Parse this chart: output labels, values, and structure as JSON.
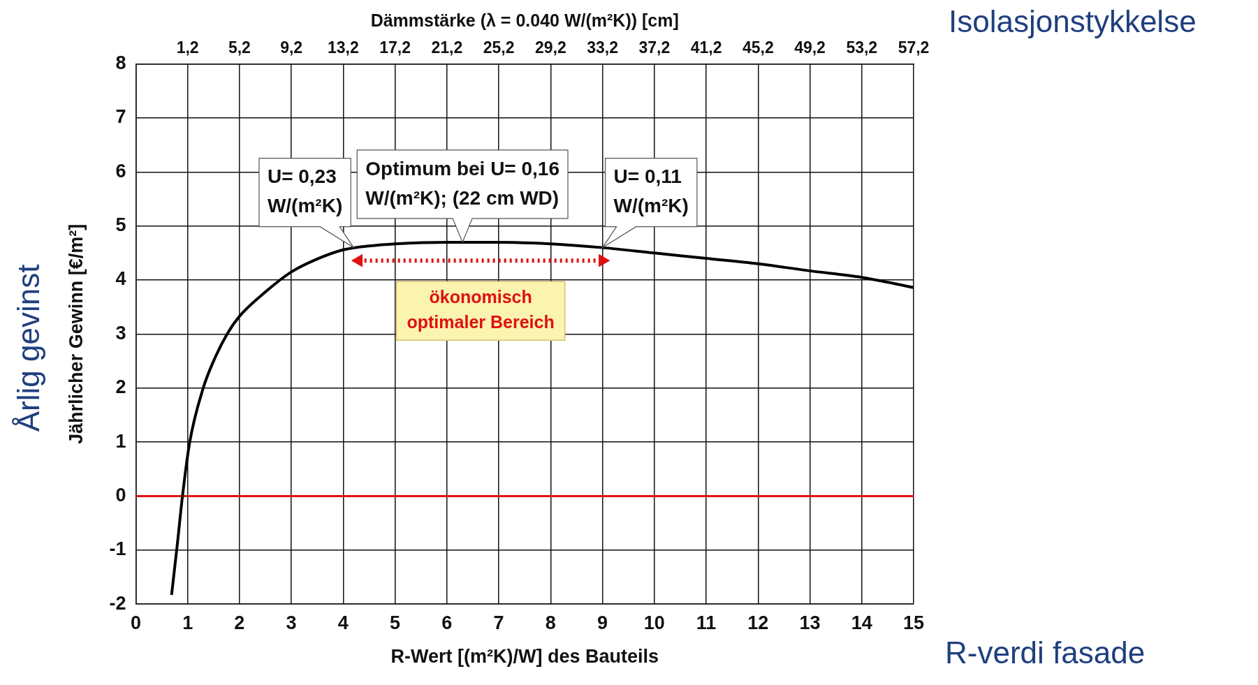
{
  "chart_data": {
    "type": "line",
    "xlabel": "R-Wert [(m²K)/W] des Bauteils",
    "ylabel": "Jährlicher Gewinn [€/m²]",
    "x2label": "Dämmstärke (λ = 0.040 W/(m²K)) [cm]",
    "series": [
      {
        "color": "#000000",
        "x": [
          0.69,
          0.8,
          0.9,
          1.04,
          1.3,
          1.5,
          1.76,
          2,
          2.5,
          3,
          3.5,
          4,
          4.5,
          5,
          6,
          7,
          8,
          9,
          10,
          11,
          12,
          13,
          14,
          15
        ],
        "values": [
          -1.83,
          -0.9,
          0,
          1,
          2,
          2.5,
          3,
          3.33,
          3.78,
          4.15,
          4.39,
          4.56,
          4.63,
          4.67,
          4.7,
          4.7,
          4.67,
          4.6,
          4.5,
          4.4,
          4.3,
          4.17,
          4.05,
          3.86
        ]
      },
      {
        "name": "ökonomisch optimaler Bereich",
        "color": "#e01010",
        "x": [
          4.3,
          9
        ],
        "values": [
          4.36,
          4.36
        ],
        "line_style": "dotted",
        "marker": "triangle"
      }
    ],
    "xlim": [
      0,
      15
    ],
    "xticks": [
      0,
      1,
      2,
      3,
      4,
      5,
      6,
      7,
      8,
      9,
      10,
      11,
      12,
      13,
      14,
      15
    ],
    "ylim": [
      -2,
      8
    ],
    "yticks": [
      -2,
      -1,
      0,
      1,
      2,
      3,
      4,
      5,
      6,
      7,
      8
    ],
    "x2lim": [
      -2.8,
      57.2
    ],
    "x2ticks": [
      {
        "value": 1.2,
        "label": "1,2"
      },
      {
        "value": 5.2,
        "label": "5,2"
      },
      {
        "value": 9.2,
        "label": "9,2"
      },
      {
        "value": 13.2,
        "label": "13,2"
      },
      {
        "value": 17.2,
        "label": "17,2"
      },
      {
        "value": 21.2,
        "label": "21,2"
      },
      {
        "value": 25.2,
        "label": "25,2"
      },
      {
        "value": 29.2,
        "label": "29,2"
      },
      {
        "value": 33.2,
        "label": "33,2"
      },
      {
        "value": 37.2,
        "label": "37,2"
      },
      {
        "value": 41.2,
        "label": "41,2"
      },
      {
        "value": 45.2,
        "label": "45,2"
      },
      {
        "value": 49.2,
        "label": "49,2"
      },
      {
        "value": 53.2,
        "label": "53,2"
      },
      {
        "value": 57.2,
        "label": "57,2"
      }
    ],
    "grid": true,
    "marker": "none",
    "line_style": "solid",
    "legend": false,
    "ref_lines": [
      {
        "axis": "y",
        "value": 0,
        "color": "#e01010"
      }
    ],
    "annotations": [
      {
        "text": "U= 0,23\nW/(m²K)",
        "x": 4.2,
        "y": 4.6
      },
      {
        "text": "Optimum bei U= 0,16\nW/(m²K); (22 cm WD)",
        "x": 6.3,
        "y": 4.7
      },
      {
        "text": "U= 0,11\nW/(m²K)",
        "x": 9,
        "y": 4.6
      },
      "Isolasjonstykkelse",
      "R-verdi fasade",
      "Årlig gevinst"
    ]
  }
}
